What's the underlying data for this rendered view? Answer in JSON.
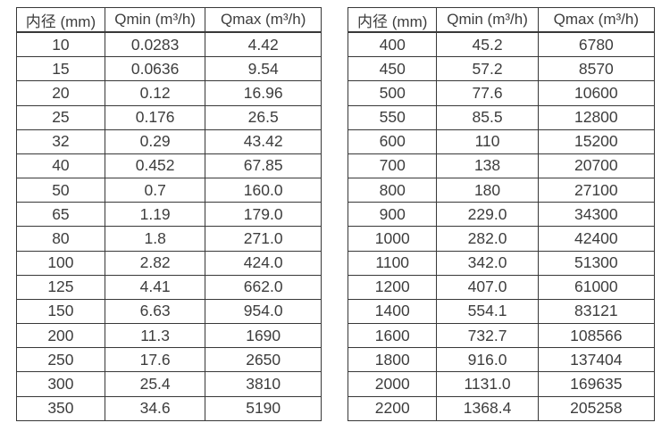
{
  "page": {
    "background": "#ffffff",
    "text_color": "#3d3d3d",
    "border_color": "#383838"
  },
  "chart_data": [
    {
      "type": "table",
      "columns": [
        "内径 (mm)",
        "Qmin (m³/h)",
        "Qmax (m³/h)"
      ],
      "rows": [
        [
          "10",
          "0.0283",
          "4.42"
        ],
        [
          "15",
          "0.0636",
          "9.54"
        ],
        [
          "20",
          "0.12",
          "16.96"
        ],
        [
          "25",
          "0.176",
          "26.5"
        ],
        [
          "32",
          "0.29",
          "43.42"
        ],
        [
          "40",
          "0.452",
          "67.85"
        ],
        [
          "50",
          "0.7",
          "160.0"
        ],
        [
          "65",
          "1.19",
          "179.0"
        ],
        [
          "80",
          "1.8",
          "271.0"
        ],
        [
          "100",
          "2.82",
          "424.0"
        ],
        [
          "125",
          "4.41",
          "662.0"
        ],
        [
          "150",
          "6.63",
          "954.0"
        ],
        [
          "200",
          "11.3",
          "1690"
        ],
        [
          "250",
          "17.6",
          "2650"
        ],
        [
          "300",
          "25.4",
          "3810"
        ],
        [
          "350",
          "34.6",
          "5190"
        ]
      ]
    },
    {
      "type": "table",
      "columns": [
        "内径 (mm)",
        "Qmin (m³/h)",
        "Qmax (m³/h)"
      ],
      "rows": [
        [
          "400",
          "45.2",
          "6780"
        ],
        [
          "450",
          "57.2",
          "8570"
        ],
        [
          "500",
          "77.6",
          "10600"
        ],
        [
          "550",
          "85.5",
          "12800"
        ],
        [
          "600",
          "110",
          "15200"
        ],
        [
          "700",
          "138",
          "20700"
        ],
        [
          "800",
          "180",
          "27100"
        ],
        [
          "900",
          "229.0",
          "34300"
        ],
        [
          "1000",
          "282.0",
          "42400"
        ],
        [
          "1100",
          "342.0",
          "51300"
        ],
        [
          "1200",
          "407.0",
          "61000"
        ],
        [
          "1400",
          "554.1",
          "83121"
        ],
        [
          "1600",
          "732.7",
          "108566"
        ],
        [
          "1800",
          "916.0",
          "137404"
        ],
        [
          "2000",
          "1131.0",
          "169635"
        ],
        [
          "2200",
          "1368.4",
          "205258"
        ]
      ]
    }
  ]
}
